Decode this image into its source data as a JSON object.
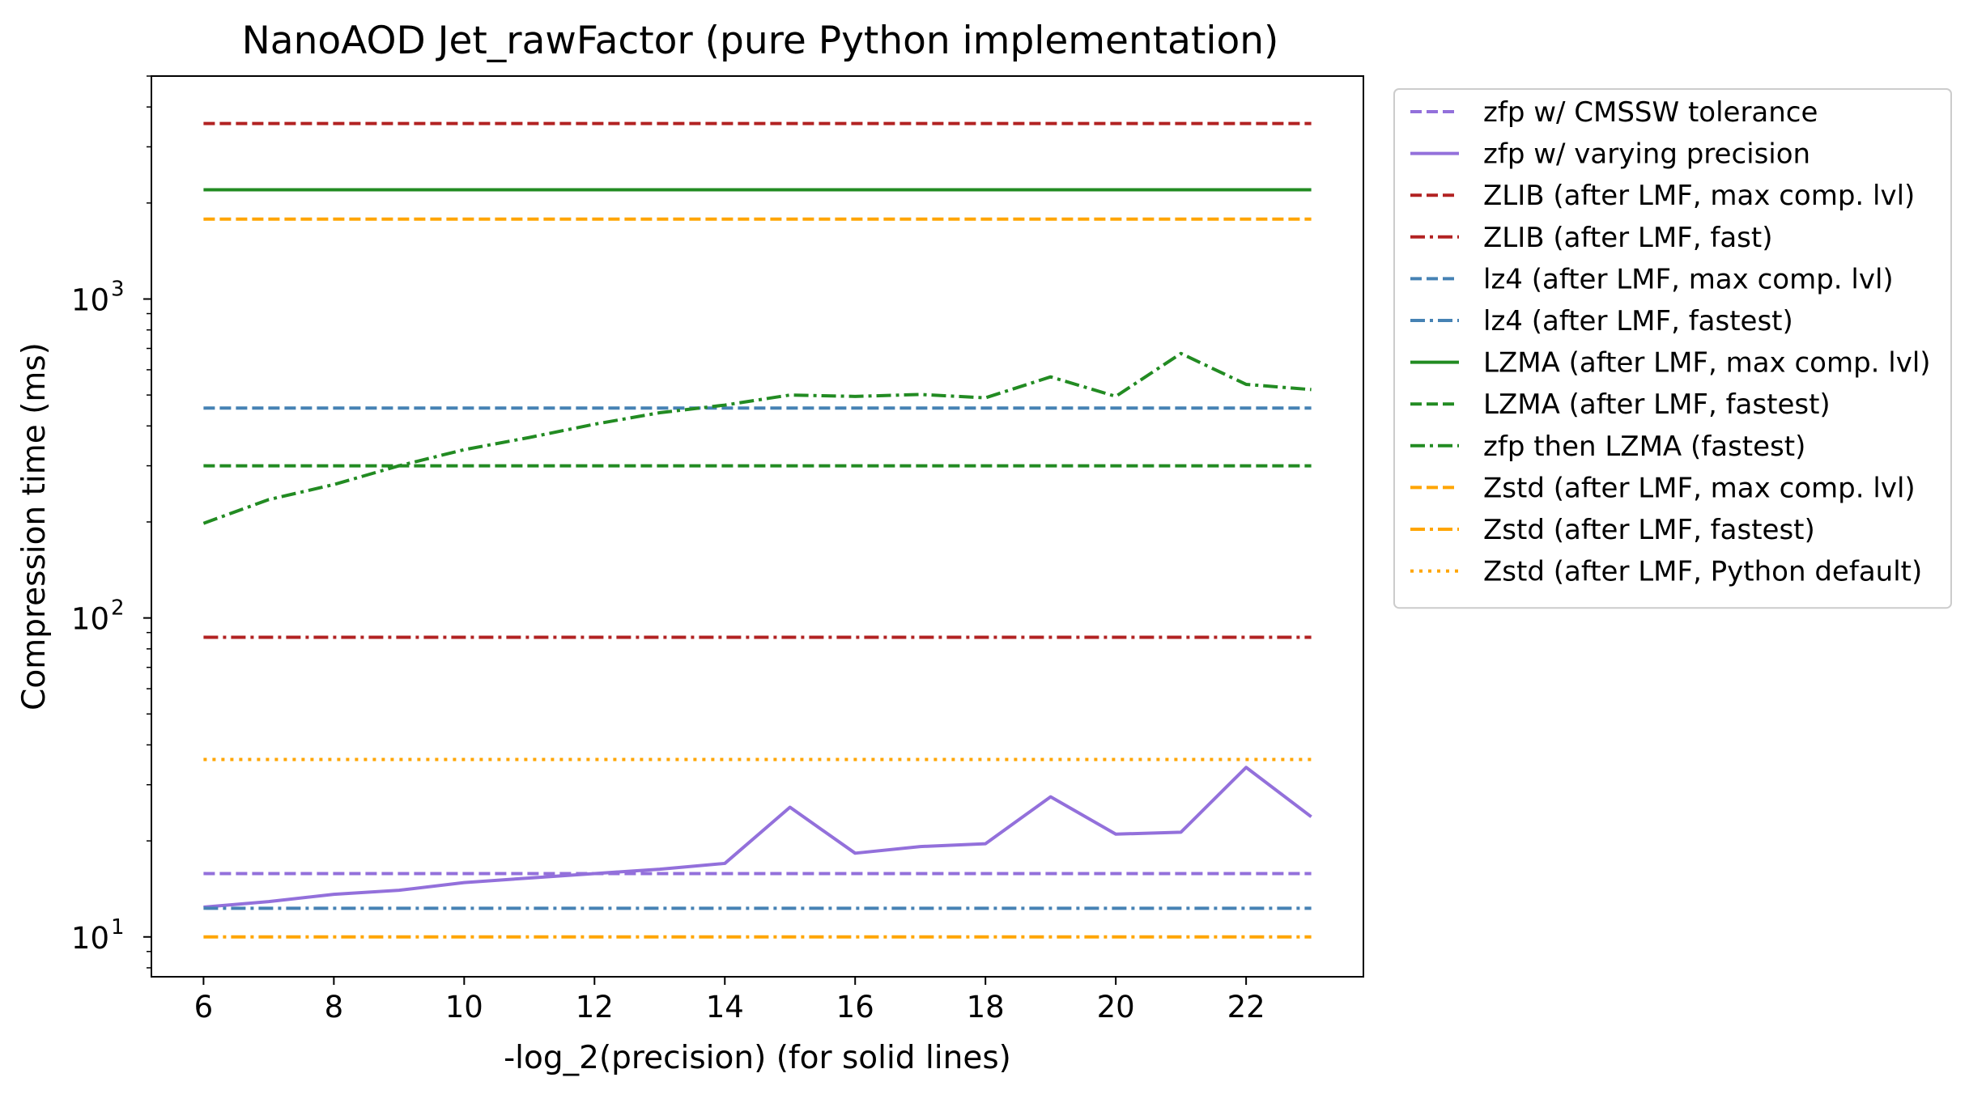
{
  "chart_data": {
    "type": "line",
    "title": "NanoAOD Jet_rawFactor (pure Python implementation)",
    "xlabel": "-log_2(precision) (for solid lines)",
    "ylabel": "Compression time (ms)",
    "xscale": "linear",
    "yscale": "log",
    "xlim": [
      5.2,
      23.8
    ],
    "ylim": [
      7.5,
      5000
    ],
    "xticks": [
      6,
      8,
      10,
      12,
      14,
      16,
      18,
      20,
      22
    ],
    "yticks": [
      {
        "value": 10,
        "base": "10",
        "exp": "1"
      },
      {
        "value": 100,
        "base": "10",
        "exp": "2"
      },
      {
        "value": 1000,
        "base": "10",
        "exp": "3"
      }
    ],
    "grid": false,
    "legend_position": "outside upper right",
    "series": [
      {
        "name": "zfp w/ CMSSW tolerance",
        "color": "#9370db",
        "style": "dashed",
        "x": [
          6,
          23
        ],
        "y": [
          15.8,
          15.8
        ]
      },
      {
        "name": "zfp w/ varying precision",
        "color": "#9370db",
        "style": "solid",
        "x": [
          6,
          7,
          8,
          9,
          10,
          11,
          12,
          13,
          14,
          15,
          16,
          17,
          18,
          19,
          20,
          21,
          22,
          23
        ],
        "y": [
          12.4,
          12.9,
          13.6,
          14.0,
          14.8,
          15.3,
          15.8,
          16.3,
          17.0,
          25.5,
          18.3,
          19.2,
          19.6,
          27.5,
          21.0,
          21.3,
          34.0,
          23.8
        ]
      },
      {
        "name": "ZLIB (after LMF, max comp. lvl)",
        "color": "#b22222",
        "style": "dashed",
        "x": [
          6,
          23
        ],
        "y": [
          3550,
          3550
        ]
      },
      {
        "name": "ZLIB (after LMF, fast)",
        "color": "#b22222",
        "style": "dashdot",
        "x": [
          6,
          23
        ],
        "y": [
          87,
          87
        ]
      },
      {
        "name": "lz4 (after LMF, max comp. lvl)",
        "color": "#4682b4",
        "style": "dashed",
        "x": [
          6,
          23
        ],
        "y": [
          455,
          455
        ]
      },
      {
        "name": "lz4 (after LMF, fastest)",
        "color": "#4682b4",
        "style": "dashdot",
        "x": [
          6,
          23
        ],
        "y": [
          12.3,
          12.3
        ]
      },
      {
        "name": "LZMA (after LMF, max comp. lvl)",
        "color": "#228b22",
        "style": "solid",
        "x": [
          6,
          23
        ],
        "y": [
          2200,
          2200
        ]
      },
      {
        "name": "LZMA (after LMF, fastest)",
        "color": "#228b22",
        "style": "dashed",
        "x": [
          6,
          23
        ],
        "y": [
          300,
          300
        ]
      },
      {
        "name": "zfp then LZMA (fastest)",
        "color": "#228b22",
        "style": "dashdot",
        "x": [
          6,
          7,
          8,
          9,
          10,
          11,
          12,
          13,
          14,
          15,
          16,
          17,
          18,
          19,
          20,
          21,
          22,
          23
        ],
        "y": [
          198,
          235,
          262,
          300,
          337,
          368,
          405,
          440,
          465,
          500,
          495,
          502,
          490,
          570,
          495,
          675,
          540,
          520
        ]
      },
      {
        "name": "Zstd (after LMF, max comp. lvl)",
        "color": "#ffa500",
        "style": "dashed",
        "x": [
          6,
          23
        ],
        "y": [
          1780,
          1780
        ]
      },
      {
        "name": "Zstd (after LMF, fastest)",
        "color": "#ffa500",
        "style": "dashdot",
        "x": [
          6,
          23
        ],
        "y": [
          10.0,
          10.0
        ]
      },
      {
        "name": "Zstd (after LMF, Python default)",
        "color": "#ffa500",
        "style": "dotted",
        "x": [
          6,
          23
        ],
        "y": [
          36,
          36
        ]
      }
    ]
  }
}
